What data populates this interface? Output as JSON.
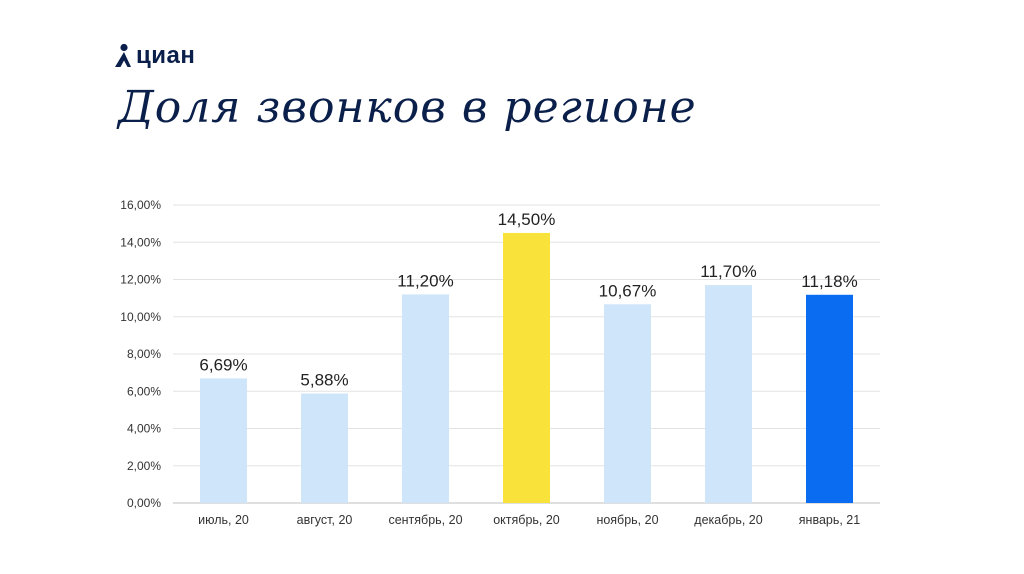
{
  "logo": {
    "text": "циан",
    "brand_color": "#0b1f4b"
  },
  "title": "Доля звонков в регионе",
  "chart_data": {
    "type": "bar",
    "categories": [
      "июль, 20",
      "август, 20",
      "сентябрь, 20",
      "октябрь, 20",
      "ноябрь, 20",
      "декабрь, 20",
      "январь, 21"
    ],
    "values": [
      6.69,
      5.88,
      11.2,
      14.5,
      10.67,
      11.7,
      11.18
    ],
    "data_labels": [
      "6,69%",
      "5,88%",
      "11,20%",
      "14,50%",
      "10,67%",
      "11,70%",
      "11,18%"
    ],
    "bar_colors": [
      "#cfe5f9",
      "#cfe5f9",
      "#cfe5f9",
      "#f9e33b",
      "#cfe5f9",
      "#cfe5f9",
      "#0a6cf0"
    ],
    "y_ticks": [
      "0,00%",
      "2,00%",
      "4,00%",
      "6,00%",
      "8,00%",
      "10,00%",
      "12,00%",
      "14,00%",
      "16,00%"
    ],
    "ylim": [
      0,
      16
    ],
    "grid": true,
    "legend": false
  }
}
